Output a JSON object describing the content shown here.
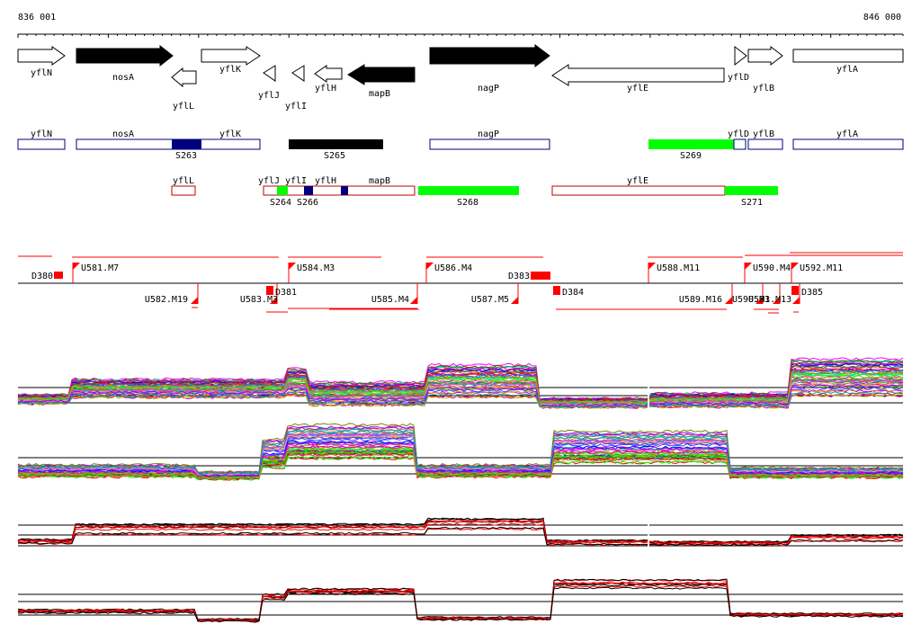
{
  "coordinates": {
    "start": "836 001",
    "end": "846 000"
  },
  "genes": [
    {
      "label": "yflN",
      "style": "open",
      "dir": "right"
    },
    {
      "label": "nosA",
      "style": "filled",
      "dir": "right"
    },
    {
      "label": "yflL",
      "style": "open",
      "dir": "left"
    },
    {
      "label": "yflK",
      "style": "open",
      "dir": "right"
    },
    {
      "label": "yflJ",
      "style": "open",
      "dir": "left"
    },
    {
      "label": "yflI",
      "style": "open",
      "dir": "left"
    },
    {
      "label": "yflH",
      "style": "open",
      "dir": "left"
    },
    {
      "label": "mapB",
      "style": "filled",
      "dir": "left"
    },
    {
      "label": "nagP",
      "style": "filled",
      "dir": "right"
    },
    {
      "label": "yflE",
      "style": "open",
      "dir": "left"
    },
    {
      "label": "yflD",
      "style": "open",
      "dir": "right"
    },
    {
      "label": "yflB",
      "style": "open",
      "dir": "right"
    },
    {
      "label": "yflA",
      "style": "open",
      "dir": "right"
    }
  ],
  "strand_plus": {
    "labels": [
      "yflN",
      "nosA",
      "yflK",
      "nagP",
      "yflD",
      "yflB",
      "yflA"
    ],
    "segments": [
      "S263",
      "S265",
      "S269"
    ],
    "segment_colors": {
      "S263": "#00007f",
      "S265": "#000000",
      "S269": "#00ff00"
    }
  },
  "strand_minus": {
    "labels": [
      "yflL",
      "yflJ",
      "yflI",
      "yflH",
      "mapB",
      "yflE"
    ],
    "segments": [
      "S264",
      "S266",
      "S268",
      "S271"
    ],
    "segment_colors": {
      "S264": "#00ff00",
      "S266": "#00007f",
      "S268": "#00ff00",
      "S271": "#00ff00"
    }
  },
  "features_top": [
    "D380",
    "U581.M7",
    "U584.M3",
    "U586.M4",
    "D383",
    "U588.M11",
    "U590.M4",
    "U592.M11"
  ],
  "features_bottom": [
    "U582.M19",
    "U583.M3",
    "D381",
    "U585.M4",
    "U587.M5",
    "D384",
    "U589.M16",
    "U590.M3",
    "U591.M13",
    "D385"
  ],
  "colors": {
    "plus_strand": "#00007f",
    "minus_strand": "#bf0000",
    "feature_red": "#ff0000",
    "segment_green": "#00ff00"
  }
}
